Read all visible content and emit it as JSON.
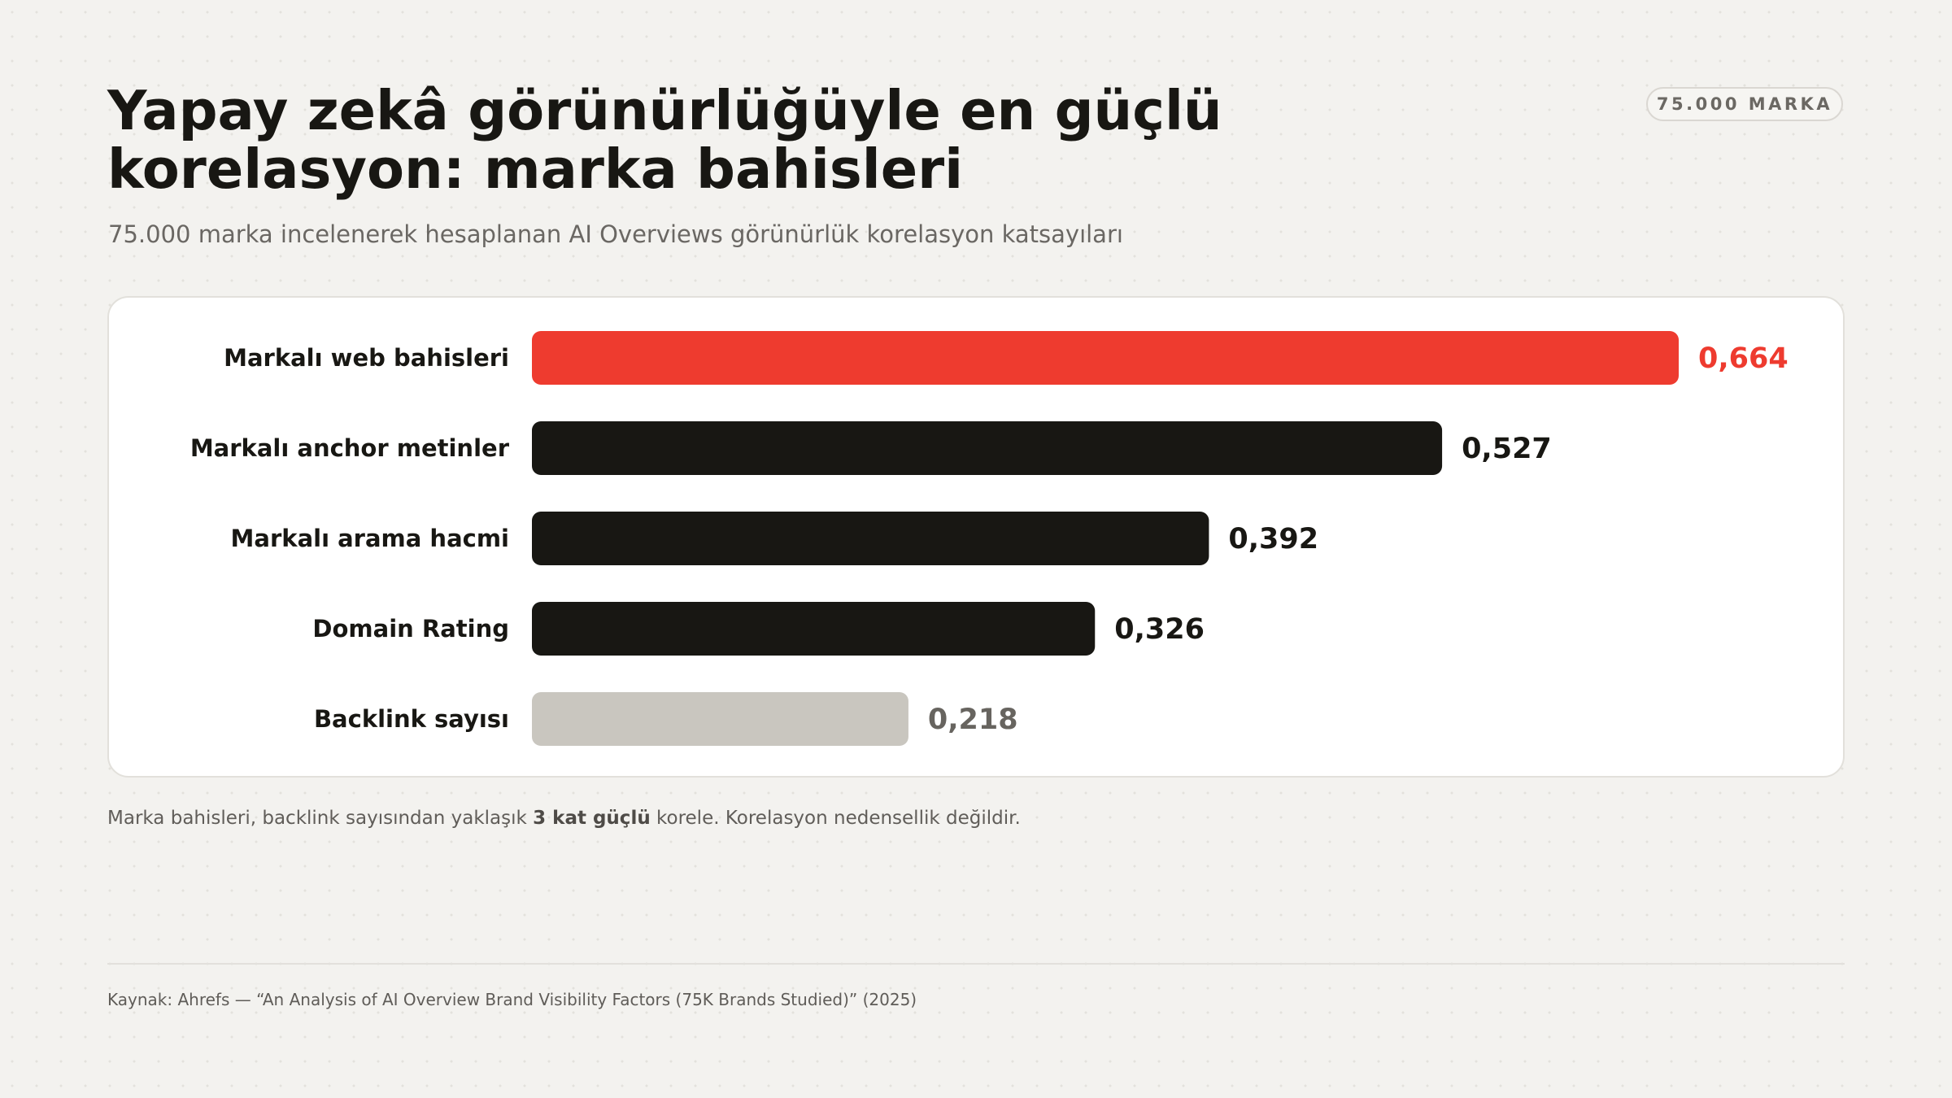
{
  "header": {
    "title_line1": "Yapay zekâ görünürlüğüyle en güçlü",
    "title_line2": "korelasyon: marka bahisleri",
    "subtitle": "75.000 marka incelenerek hesaplanan AI Overviews görünürlük korelasyon katsayıları",
    "badge": "75.000 MARKA"
  },
  "chart_data": {
    "type": "bar",
    "orientation": "horizontal",
    "categories": [
      "Markalı web bahisleri",
      "Markalı anchor metinler",
      "Markalı arama hacmi",
      "Domain Rating",
      "Backlink sayısı"
    ],
    "values": [
      0.664,
      0.527,
      0.392,
      0.326,
      0.218
    ],
    "value_labels": [
      "0,664",
      "0,527",
      "0,392",
      "0,326",
      "0,218"
    ],
    "bar_colors": [
      "#ee3b2f",
      "#181713",
      "#181713",
      "#181713",
      "#c9c6bf"
    ],
    "label_colors": [
      "#ee3b2f",
      "#181713",
      "#181713",
      "#181713",
      "#67645f"
    ],
    "xlim": [
      0,
      0.664
    ],
    "grid": false
  },
  "footer": {
    "note_before": "Marka bahisleri, backlink sayısından yaklaşık ",
    "note_bold": "3 kat güçlü",
    "note_after": " korele. Korelasyon nedensellik değildir.",
    "source": "Kaynak: Ahrefs — “An Analysis of AI Overview Brand Visibility Factors (75K Brands Studied)” (2025)"
  }
}
